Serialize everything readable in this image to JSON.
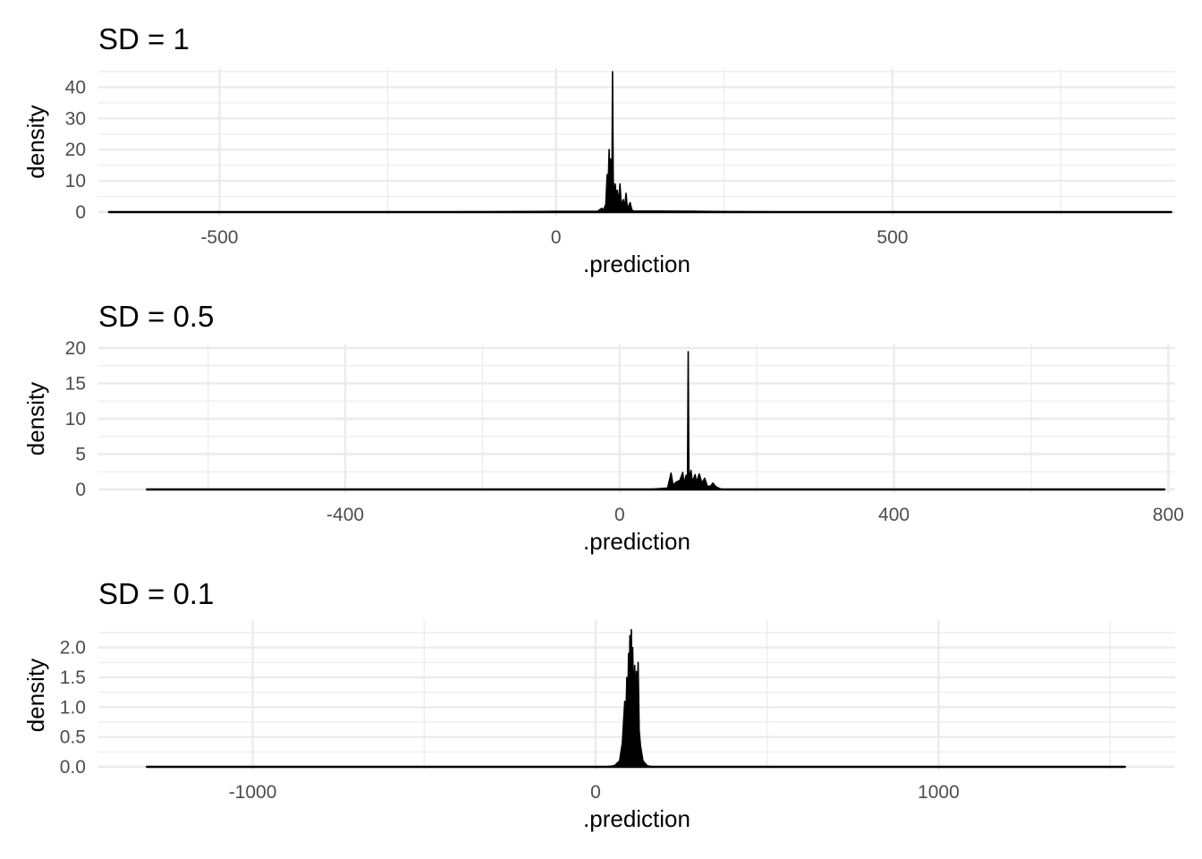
{
  "chart_data": [
    {
      "type": "area",
      "title": "SD = 1",
      "xlabel": ".prediction",
      "ylabel": "density",
      "xlim": [
        -680,
        920
      ],
      "ylim": [
        0,
        45
      ],
      "x_ticks": [
        -500,
        0,
        500
      ],
      "x_tick_labels": [
        "-500",
        "0",
        "500"
      ],
      "x_minor_ticks": [
        -750,
        -250,
        250,
        750
      ],
      "y_ticks": [
        0,
        10,
        20,
        30,
        40
      ],
      "y_tick_labels": [
        "0",
        "10",
        "20",
        "30",
        "40"
      ],
      "y_minor_ticks": [
        5,
        15,
        25,
        35,
        45
      ],
      "grid": true,
      "legend": "none",
      "data_range": [
        -665,
        915
      ],
      "points": [
        [
          -665,
          0
        ],
        [
          -300,
          0
        ],
        [
          -100,
          0.08
        ],
        [
          0,
          0.22
        ],
        [
          62,
          0.3
        ],
        [
          68,
          1.2
        ],
        [
          70,
          0.4
        ],
        [
          74,
          2.5
        ],
        [
          76,
          12
        ],
        [
          77,
          4
        ],
        [
          79,
          20
        ],
        [
          80,
          6
        ],
        [
          81,
          17
        ],
        [
          83,
          7
        ],
        [
          84,
          45
        ],
        [
          85,
          10
        ],
        [
          87,
          4
        ],
        [
          88,
          9
        ],
        [
          90,
          3
        ],
        [
          91,
          7
        ],
        [
          93,
          2.5
        ],
        [
          95,
          9
        ],
        [
          97,
          2
        ],
        [
          100,
          4
        ],
        [
          102,
          1.5
        ],
        [
          104,
          6
        ],
        [
          106,
          1
        ],
        [
          110,
          3
        ],
        [
          113,
          0.6
        ],
        [
          115,
          0.35
        ],
        [
          200,
          0.25
        ],
        [
          260,
          0.12
        ],
        [
          400,
          0
        ],
        [
          915,
          0
        ]
      ]
    },
    {
      "type": "area",
      "title": "SD = 0.5",
      "xlabel": ".prediction",
      "ylabel": "density",
      "xlim": [
        -760,
        810
      ],
      "ylim": [
        0,
        20
      ],
      "x_ticks": [
        -400,
        0,
        400,
        800
      ],
      "x_tick_labels": [
        "-400",
        "0",
        "400",
        "800"
      ],
      "x_minor_ticks": [
        -600,
        -200,
        200,
        600
      ],
      "y_ticks": [
        0,
        5,
        10,
        15,
        20
      ],
      "y_tick_labels": [
        "0",
        "5",
        "10",
        "15",
        "20"
      ],
      "y_minor_ticks": [
        2.5,
        7.5,
        12.5,
        17.5
      ],
      "grid": true,
      "legend": "none",
      "data_range": [
        -690,
        795
      ],
      "points": [
        [
          -690,
          0
        ],
        [
          40,
          0
        ],
        [
          70,
          0.2
        ],
        [
          75,
          2.3
        ],
        [
          78,
          0.6
        ],
        [
          82,
          1
        ],
        [
          88,
          1.3
        ],
        [
          92,
          2.4
        ],
        [
          94,
          0.8
        ],
        [
          97,
          2
        ],
        [
          99,
          1.2
        ],
        [
          100,
          19.5
        ],
        [
          101,
          1.5
        ],
        [
          104,
          2.7
        ],
        [
          106,
          1
        ],
        [
          110,
          2.1
        ],
        [
          112,
          1
        ],
        [
          116,
          2.2
        ],
        [
          120,
          0.9
        ],
        [
          124,
          1.6
        ],
        [
          128,
          0.4
        ],
        [
          133,
          0.5
        ],
        [
          136,
          0.9
        ],
        [
          140,
          0.4
        ],
        [
          146,
          0.1
        ],
        [
          150,
          0
        ],
        [
          795,
          0
        ]
      ]
    },
    {
      "type": "area",
      "title": "SD = 0.1",
      "xlabel": ".prediction",
      "ylabel": "density",
      "xlim": [
        -1450,
        1690
      ],
      "ylim": [
        0,
        2.4
      ],
      "x_ticks": [
        -1000,
        0,
        1000
      ],
      "x_tick_labels": [
        "-1000",
        "0",
        "1000"
      ],
      "x_minor_ticks": [
        -500,
        500,
        1500
      ],
      "y_ticks": [
        0,
        0.5,
        1.0,
        1.5,
        2.0
      ],
      "y_tick_labels": [
        "0.0",
        "0.5",
        "1.0",
        "1.5",
        "2.0"
      ],
      "y_minor_ticks": [
        0.25,
        0.75,
        1.25,
        1.75,
        2.25
      ],
      "grid": true,
      "legend": "none",
      "data_range": [
        -1310,
        1545
      ],
      "points": [
        [
          -1310,
          0
        ],
        [
          30,
          0
        ],
        [
          55,
          0.02
        ],
        [
          70,
          0.1
        ],
        [
          78,
          0.4
        ],
        [
          82,
          0.8
        ],
        [
          85,
          1.1
        ],
        [
          88,
          0.7
        ],
        [
          91,
          1.5
        ],
        [
          94,
          1.0
        ],
        [
          96,
          1.9
        ],
        [
          98,
          1.2
        ],
        [
          100,
          2.2
        ],
        [
          102,
          1.6
        ],
        [
          104,
          2.3
        ],
        [
          106,
          1.4
        ],
        [
          108,
          2.0
        ],
        [
          111,
          1.1
        ],
        [
          114,
          1.7
        ],
        [
          116,
          0.9
        ],
        [
          119,
          1.6
        ],
        [
          121,
          0.7
        ],
        [
          124,
          1.75
        ],
        [
          127,
          0.6
        ],
        [
          131,
          0.35
        ],
        [
          138,
          0.1
        ],
        [
          150,
          0.02
        ],
        [
          165,
          0
        ],
        [
          1545,
          0
        ]
      ]
    }
  ]
}
